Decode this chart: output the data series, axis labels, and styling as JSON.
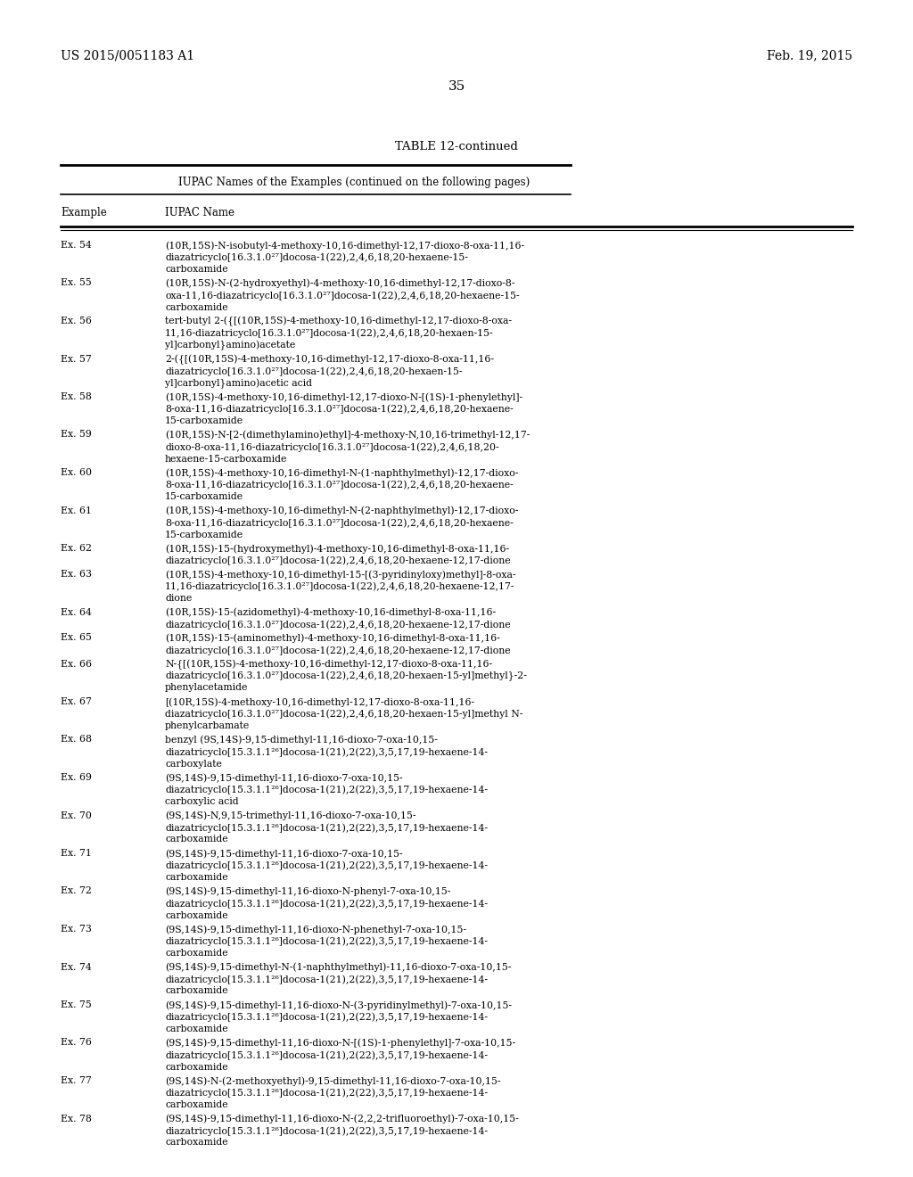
{
  "patent_number": "US 2015/0051183 A1",
  "patent_date": "Feb. 19, 2015",
  "page_number": "35",
  "table_title": "TABLE 12-continued",
  "table_subtitle": "IUPAC Names of the Examples (continued on the following pages)",
  "col1_header": "Example",
  "col2_header": "IUPAC Name",
  "entries": [
    {
      "example": "Ex. 54",
      "name": "(10R,15S)-N-isobutyl-4-methoxy-10,16-dimethyl-12,17-dioxo-8-oxa-11,16-\ndiazatricyclo[16.3.1.0²⁷]docosa-1(22),2,4,6,18,20-hexaene-15-\ncarboxamide"
    },
    {
      "example": "Ex. 55",
      "name": "(10R,15S)-N-(2-hydroxyethyl)-4-methoxy-10,16-dimethyl-12,17-dioxo-8-\noxa-11,16-diazatricyclo[16.3.1.0²⁷]docosa-1(22),2,4,6,18,20-hexaene-15-\ncarboxamide"
    },
    {
      "example": "Ex. 56",
      "name": "tert-butyl 2-({[(10R,15S)-4-methoxy-10,16-dimethyl-12,17-dioxo-8-oxa-\n11,16-diazatricyclo[16.3.1.0²⁷]docosa-1(22),2,4,6,18,20-hexaen-15-\nyl]carbonyl}amino)acetate"
    },
    {
      "example": "Ex. 57",
      "name": "2-({[(10R,15S)-4-methoxy-10,16-dimethyl-12,17-dioxo-8-oxa-11,16-\ndiazatricyclo[16.3.1.0²⁷]docosa-1(22),2,4,6,18,20-hexaen-15-\nyl]carbonyl}amino)acetic acid"
    },
    {
      "example": "Ex. 58",
      "name": "(10R,15S)-4-methoxy-10,16-dimethyl-12,17-dioxo-N-[(1S)-1-phenylethyl]-\n8-oxa-11,16-diazatricyclo[16.3.1.0²⁷]docosa-1(22),2,4,6,18,20-hexaene-\n15-carboxamide"
    },
    {
      "example": "Ex. 59",
      "name": "(10R,15S)-N-[2-(dimethylamino)ethyl]-4-methoxy-N,10,16-trimethyl-12,17-\ndioxo-8-oxa-11,16-diazatricyclo[16.3.1.0²⁷]docosa-1(22),2,4,6,18,20-\nhexaene-15-carboxamide"
    },
    {
      "example": "Ex. 60",
      "name": "(10R,15S)-4-methoxy-10,16-dimethyl-N-(1-naphthylmethyl)-12,17-dioxo-\n8-oxa-11,16-diazatricyclo[16.3.1.0²⁷]docosa-1(22),2,4,6,18,20-hexaene-\n15-carboxamide"
    },
    {
      "example": "Ex. 61",
      "name": "(10R,15S)-4-methoxy-10,16-dimethyl-N-(2-naphthylmethyl)-12,17-dioxo-\n8-oxa-11,16-diazatricyclo[16.3.1.0²⁷]docosa-1(22),2,4,6,18,20-hexaene-\n15-carboxamide"
    },
    {
      "example": "Ex. 62",
      "name": "(10R,15S)-15-(hydroxymethyl)-4-methoxy-10,16-dimethyl-8-oxa-11,16-\ndiazatricyclo[16.3.1.0²⁷]docosa-1(22),2,4,6,18,20-hexaene-12,17-dione"
    },
    {
      "example": "Ex. 63",
      "name": "(10R,15S)-4-methoxy-10,16-dimethyl-15-[(3-pyridinyloxy)methyl]-8-oxa-\n11,16-diazatricyclo[16.3.1.0²⁷]docosa-1(22),2,4,6,18,20-hexaene-12,17-\ndione"
    },
    {
      "example": "Ex. 64",
      "name": "(10R,15S)-15-(azidomethyl)-4-methoxy-10,16-dimethyl-8-oxa-11,16-\ndiazatricyclo[16.3.1.0²⁷]docosa-1(22),2,4,6,18,20-hexaene-12,17-dione"
    },
    {
      "example": "Ex. 65",
      "name": "(10R,15S)-15-(aminomethyl)-4-methoxy-10,16-dimethyl-8-oxa-11,16-\ndiazatricyclo[16.3.1.0²⁷]docosa-1(22),2,4,6,18,20-hexaene-12,17-dione"
    },
    {
      "example": "Ex. 66",
      "name": "N-{[(10R,15S)-4-methoxy-10,16-dimethyl-12,17-dioxo-8-oxa-11,16-\ndiazatricyclo[16.3.1.0²⁷]docosa-1(22),2,4,6,18,20-hexaen-15-yl]methyl}-2-\nphenylacetamide"
    },
    {
      "example": "Ex. 67",
      "name": "[(10R,15S)-4-methoxy-10,16-dimethyl-12,17-dioxo-8-oxa-11,16-\ndiazatricyclo[16.3.1.0²⁷]docosa-1(22),2,4,6,18,20-hexaen-15-yl]methyl N-\nphenylcarbamate"
    },
    {
      "example": "Ex. 68",
      "name": "benzyl (9S,14S)-9,15-dimethyl-11,16-dioxo-7-oxa-10,15-\ndiazatricyclo[15.3.1.1²⁶]docosa-1(21),2(22),3,5,17,19-hexaene-14-\ncarboxylate"
    },
    {
      "example": "Ex. 69",
      "name": "(9S,14S)-9,15-dimethyl-11,16-dioxo-7-oxa-10,15-\ndiazatricyclo[15.3.1.1²⁶]docosa-1(21),2(22),3,5,17,19-hexaene-14-\ncarboxylic acid"
    },
    {
      "example": "Ex. 70",
      "name": "(9S,14S)-N,9,15-trimethyl-11,16-dioxo-7-oxa-10,15-\ndiazatricyclo[15.3.1.1²⁶]docosa-1(21),2(22),3,5,17,19-hexaene-14-\ncarboxamide"
    },
    {
      "example": "Ex. 71",
      "name": "(9S,14S)-9,15-dimethyl-11,16-dioxo-7-oxa-10,15-\ndiazatricyclo[15.3.1.1²⁶]docosa-1(21),2(22),3,5,17,19-hexaene-14-\ncarboxamide"
    },
    {
      "example": "Ex. 72",
      "name": "(9S,14S)-9,15-dimethyl-11,16-dioxo-N-phenyl-7-oxa-10,15-\ndiazatricyclo[15.3.1.1²⁶]docosa-1(21),2(22),3,5,17,19-hexaene-14-\ncarboxamide"
    },
    {
      "example": "Ex. 73",
      "name": "(9S,14S)-9,15-dimethyl-11,16-dioxo-N-phenethyl-7-oxa-10,15-\ndiazatricyclo[15.3.1.1²⁶]docosa-1(21),2(22),3,5,17,19-hexaene-14-\ncarboxamide"
    },
    {
      "example": "Ex. 74",
      "name": "(9S,14S)-9,15-dimethyl-N-(1-naphthylmethyl)-11,16-dioxo-7-oxa-10,15-\ndiazatricyclo[15.3.1.1²⁶]docosa-1(21),2(22),3,5,17,19-hexaene-14-\ncarboxamide"
    },
    {
      "example": "Ex. 75",
      "name": "(9S,14S)-9,15-dimethyl-11,16-dioxo-N-(3-pyridinylmethyl)-7-oxa-10,15-\ndiazatricyclo[15.3.1.1²⁶]docosa-1(21),2(22),3,5,17,19-hexaene-14-\ncarboxamide"
    },
    {
      "example": "Ex. 76",
      "name": "(9S,14S)-9,15-dimethyl-11,16-dioxo-N-[(1S)-1-phenylethyl]-7-oxa-10,15-\ndiazatricyclo[15.3.1.1²⁶]docosa-1(21),2(22),3,5,17,19-hexaene-14-\ncarboxamide"
    },
    {
      "example": "Ex. 77",
      "name": "(9S,14S)-N-(2-methoxyethyl)-9,15-dimethyl-11,16-dioxo-7-oxa-10,15-\ndiazatricyclo[15.3.1.1²⁶]docosa-1(21),2(22),3,5,17,19-hexaene-14-\ncarboxamide"
    },
    {
      "example": "Ex. 78",
      "name": "(9S,14S)-9,15-dimethyl-11,16-dioxo-N-(2,2,2-trifluoroethyl)-7-oxa-10,15-\ndiazatricyclo[15.3.1.1²⁶]docosa-1(21),2(22),3,5,17,19-hexaene-14-\ncarboxamide"
    }
  ],
  "bg_color": "#ffffff",
  "text_color": "#000000",
  "header_fontsize": 10,
  "title_fontsize": 9.5,
  "subtitle_fontsize": 8.5,
  "body_fontsize": 7.8,
  "page_num_fontsize": 11
}
